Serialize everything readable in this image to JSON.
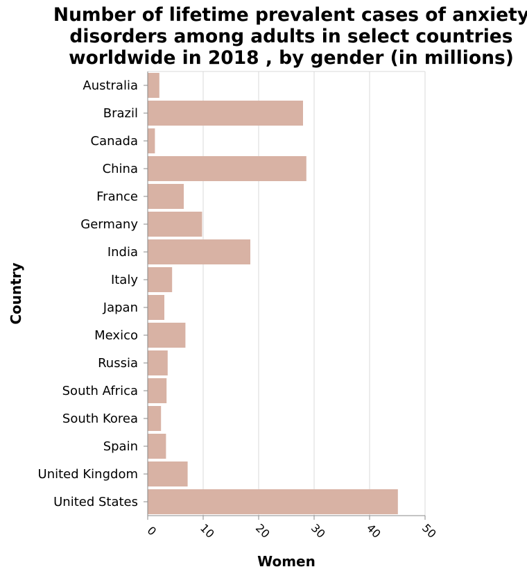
{
  "chart_data": {
    "type": "bar",
    "orientation": "horizontal",
    "title_lines": [
      "Number of lifetime prevalent cases of anxiety",
      "disorders among adults in select countries",
      "worldwide in 2018 , by gender (in millions)"
    ],
    "xlabel": "Women",
    "ylabel": "Country",
    "xlim": [
      0,
      50
    ],
    "xticks": [
      "0",
      "10",
      "20",
      "30",
      "40",
      "50"
    ],
    "grid": "vertical",
    "bar_color": "#d8b2a4",
    "categories": [
      "Australia",
      "Brazil",
      "Canada",
      "China",
      "France",
      "Germany",
      "India",
      "Italy",
      "Japan",
      "Mexico",
      "Russia",
      "South Africa",
      "South Korea",
      "Spain",
      "United Kingdom",
      "United States"
    ],
    "values": [
      2.1,
      28.0,
      1.3,
      28.6,
      6.5,
      9.8,
      18.5,
      4.4,
      3.0,
      6.8,
      3.6,
      3.4,
      2.4,
      3.3,
      7.2,
      45.1
    ]
  }
}
